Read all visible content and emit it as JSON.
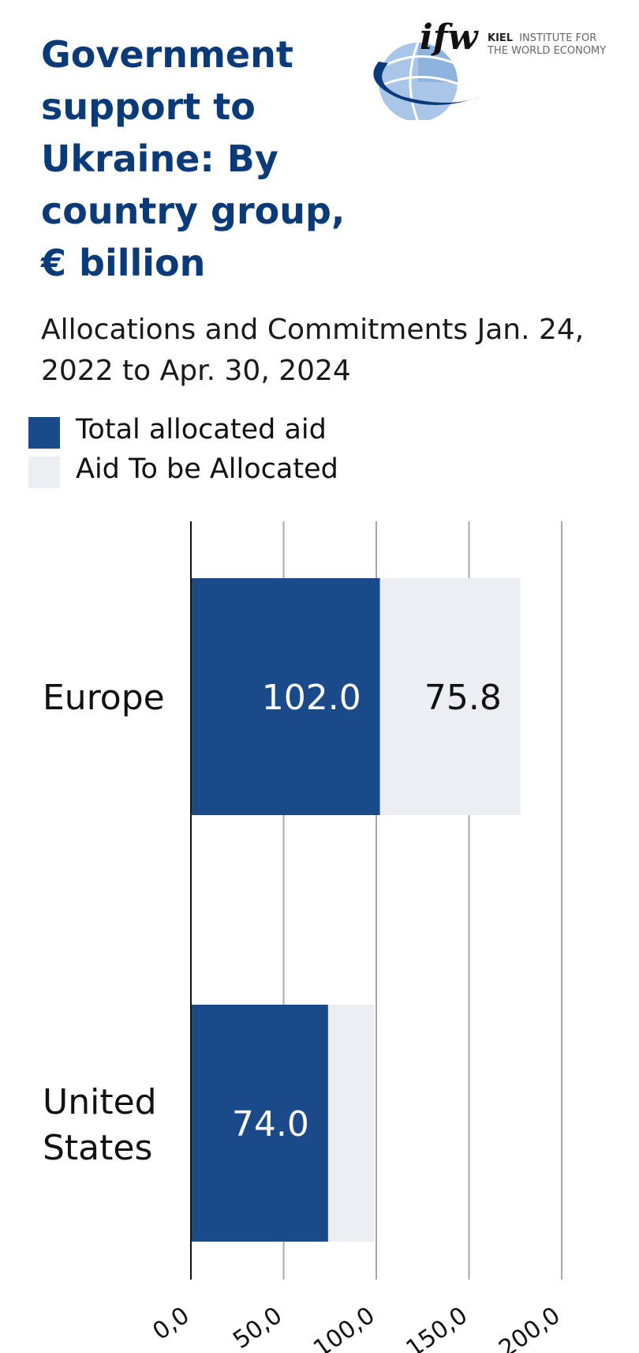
{
  "title": "Government support to Ukraine: By country group, € billion",
  "subtitle": "Allocations and Commitments Jan. 24, 2022 to Apr. 30, 2024",
  "logo": {
    "brand": "ifw",
    "line1_bold": "KIEL",
    "line1_rest": "INSTITUTE FOR",
    "line2": "THE WORLD ECONOMY"
  },
  "legend": [
    {
      "label": "Total allocated aid",
      "color": "#1b4a8a"
    },
    {
      "label": "Aid To be Allocated",
      "color": "#eceef3"
    }
  ],
  "chart_data": {
    "type": "bar",
    "orientation": "horizontal",
    "stacked": true,
    "categories": [
      "Europe",
      "United States"
    ],
    "series": [
      {
        "name": "Total allocated aid",
        "values": [
          102.0,
          74.0
        ],
        "labels": [
          "102.0",
          "74.0"
        ],
        "color": "#1b4a8a",
        "label_color": "#ffffff"
      },
      {
        "name": "Aid To be Allocated",
        "values": [
          75.8,
          25.0
        ],
        "labels": [
          "75.8",
          ""
        ],
        "color": "#eceef3",
        "label_color": "#111111"
      }
    ],
    "xlim": [
      0,
      200
    ],
    "xticks": [
      0,
      50,
      100,
      150,
      200
    ],
    "xtick_labels": [
      "0,0",
      "50,0",
      "100,0",
      "150,0",
      "200,0"
    ],
    "grid": true,
    "legend_position": "top-left"
  }
}
